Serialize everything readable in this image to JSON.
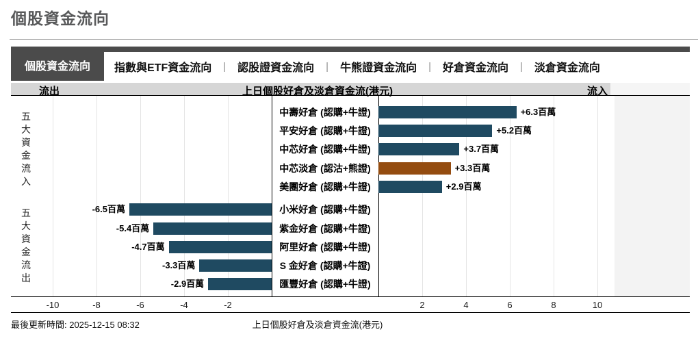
{
  "page": {
    "title": "個股資金流向"
  },
  "tabs": [
    {
      "label": "個股資金流向",
      "active": true
    },
    {
      "label": "指數與ETF資金流向",
      "active": false
    },
    {
      "label": "認股證資金流向",
      "active": false
    },
    {
      "label": "牛熊證資金流向",
      "active": false
    },
    {
      "label": "好倉資金流向",
      "active": false
    },
    {
      "label": "淡倉資金流向",
      "active": false
    }
  ],
  "chart_header": {
    "left": "流出",
    "center": "上日個股好倉及淡倉資金流(港元)",
    "right": "流入"
  },
  "footer": {
    "updated": "最後更新時間: 2025-12-15 08:32",
    "caption": "上日個股好倉及淡倉資金流(港元)"
  },
  "colors": {
    "bar_blue": "#1f4a61",
    "bar_orange": "#944c10",
    "tab_active_bg": "#4b4b4b",
    "header_band": "#d6d6d6",
    "side_panel": "#f3f3f3",
    "gridline": "#e4e4e4",
    "title_text": "#58595a"
  },
  "chart_data": {
    "type": "bar",
    "orientation": "horizontal",
    "title": "上日個股好倉及淡倉資金流(港元)",
    "unit": "百萬",
    "currency": "港元",
    "xlim": [
      -11,
      11
    ],
    "ticks_negative": [
      -10,
      -8,
      -6,
      -4,
      -2
    ],
    "ticks_positive": [
      2,
      4,
      6,
      8,
      10
    ],
    "grid": true,
    "series": [
      {
        "name": "五大資金流入",
        "items": [
          {
            "label": "中壽好倉 (認購+牛證)",
            "value": 6.3,
            "display": "+6.3百萬",
            "color": "blue"
          },
          {
            "label": "平安好倉 (認購+牛證)",
            "value": 5.2,
            "display": "+5.2百萬",
            "color": "blue"
          },
          {
            "label": "中芯好倉 (認購+牛證)",
            "value": 3.7,
            "display": "+3.7百萬",
            "color": "blue"
          },
          {
            "label": "中芯淡倉 (認沽+熊證)",
            "value": 3.3,
            "display": "+3.3百萬",
            "color": "orange"
          },
          {
            "label": "美團好倉 (認購+牛證)",
            "value": 2.9,
            "display": "+2.9百萬",
            "color": "blue"
          }
        ]
      },
      {
        "name": "五大資金流出",
        "items": [
          {
            "label": "小米好倉 (認購+牛證)",
            "value": -6.5,
            "display": "-6.5百萬",
            "color": "blue"
          },
          {
            "label": "紫金好倉 (認購+牛證)",
            "value": -5.4,
            "display": "-5.4百萬",
            "color": "blue"
          },
          {
            "label": "阿里好倉 (認購+牛證)",
            "value": -4.7,
            "display": "-4.7百萬",
            "color": "blue"
          },
          {
            "label": "S 金好倉 (認購+牛證)",
            "value": -3.3,
            "display": "-3.3百萬",
            "color": "blue"
          },
          {
            "label": "匯豐好倉 (認購+牛證)",
            "value": -2.9,
            "display": "-2.9百萬",
            "color": "blue"
          }
        ]
      }
    ]
  }
}
